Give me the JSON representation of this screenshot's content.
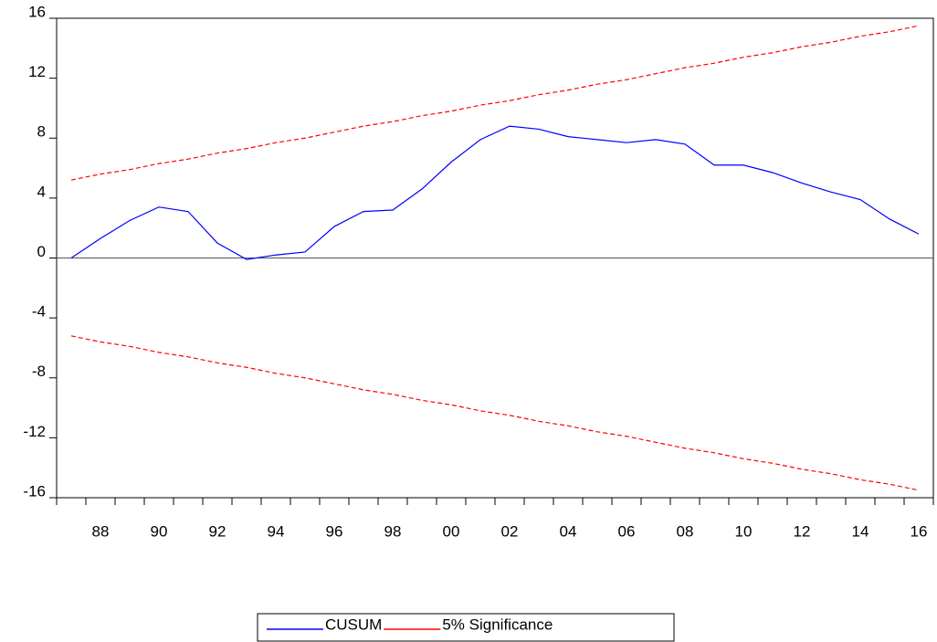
{
  "chart_data": {
    "type": "line",
    "categories": [
      "87",
      "88",
      "89",
      "90",
      "91",
      "92",
      "93",
      "94",
      "95",
      "96",
      "97",
      "98",
      "99",
      "00",
      "01",
      "02",
      "03",
      "04",
      "05",
      "06",
      "07",
      "08",
      "09",
      "10",
      "11",
      "12",
      "13",
      "14",
      "15",
      "16"
    ],
    "category_labels": [
      null,
      "88",
      null,
      "90",
      null,
      "92",
      null,
      "94",
      null,
      "96",
      null,
      "98",
      null,
      "00",
      null,
      "02",
      null,
      "04",
      null,
      "06",
      null,
      "08",
      null,
      "10",
      null,
      "12",
      null,
      "14",
      null,
      "16"
    ],
    "series": [
      {
        "name": "CUSUM",
        "color": "#0000ff",
        "dash": false,
        "values": [
          0,
          1.3,
          2.5,
          3.4,
          3.1,
          1.0,
          -0.1,
          0.2,
          0.4,
          2.1,
          3.1,
          3.2,
          4.6,
          6.4,
          7.9,
          8.8,
          8.6,
          8.1,
          7.9,
          7.7,
          7.9,
          7.6,
          6.2,
          6.2,
          5.7,
          5.0,
          4.4,
          3.9,
          2.6,
          1.6
        ]
      },
      {
        "name": "5% Significance",
        "color": "#ff0000",
        "dash": true,
        "values": [
          5.2,
          5.6,
          5.9,
          6.3,
          6.6,
          7.0,
          7.3,
          7.7,
          8.0,
          8.4,
          8.8,
          9.1,
          9.5,
          9.8,
          10.2,
          10.5,
          10.9,
          11.2,
          11.6,
          11.9,
          12.3,
          12.7,
          13.0,
          13.4,
          13.7,
          14.1,
          14.4,
          14.8,
          15.1,
          15.5
        ]
      },
      {
        "color": "#ff0000",
        "dash": true,
        "values": [
          -5.2,
          -5.6,
          -5.9,
          -6.3,
          -6.6,
          -7.0,
          -7.3,
          -7.7,
          -8.0,
          -8.4,
          -8.8,
          -9.1,
          -9.5,
          -9.8,
          -10.2,
          -10.5,
          -10.9,
          -11.2,
          -11.6,
          -11.9,
          -12.3,
          -12.7,
          -13.0,
          -13.4,
          -13.7,
          -14.1,
          -14.4,
          -14.8,
          -15.1,
          -15.5
        ]
      }
    ],
    "ylim": [
      -16,
      16
    ],
    "yticks": [
      -16,
      -12,
      -8,
      -4,
      0,
      4,
      8,
      12,
      16
    ],
    "zero_line": true,
    "legend": "bottom"
  }
}
